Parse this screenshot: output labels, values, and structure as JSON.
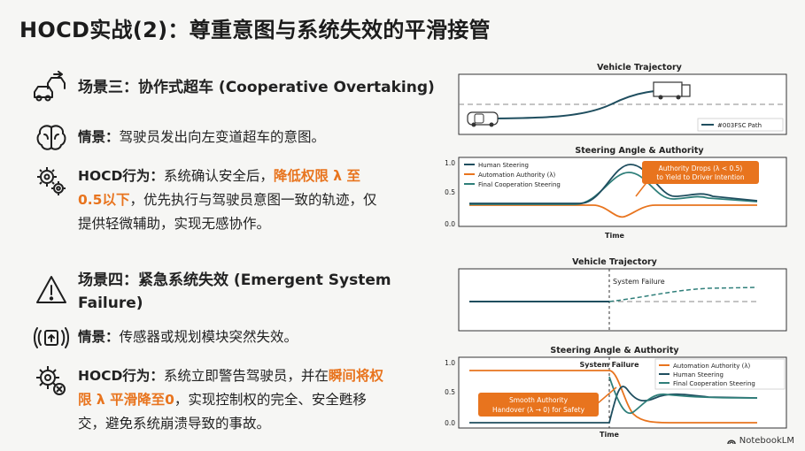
{
  "title": "HOCD实战(2)：尊重意图与系统失效的平滑接管",
  "scenario3": {
    "heading": "场景三：协作式超车 (Cooperative Overtaking)",
    "intent_label": "情景：",
    "intent_text": "驾驶员发出向左变道超车的意图。",
    "action_label": "HOCD行为：",
    "action_text_1": "系统确认安全后，",
    "action_highlight": "降低权限 λ 至 0.5以下",
    "action_text_2": "，优先执行与驾驶员意图一致的轨迹，仅提供轻微辅助，实现无感协作。"
  },
  "scenario4": {
    "heading": "场景四：紧急系统失效 (Emergent System Failure)",
    "intent_label": "情景：",
    "intent_text": "传感器或规划模块突然失效。",
    "action_label": "HOCD行为：",
    "action_text_1": "系统立即警告驾驶员，并在",
    "action_highlight": "瞬间将权限 λ 平滑降至0",
    "action_text_2": "，实现控制权的完全、安全甦移交，避免系统崩溃导致的事故。"
  },
  "chart_top_traj": {
    "title": "Vehicle Trajectory",
    "legend": "#003FSC Path"
  },
  "chart_top_steer": {
    "title": "Steering Angle & Authority",
    "xlabel": "Time",
    "yticks": [
      "1.0",
      "0.5",
      "0.0"
    ],
    "legend": [
      "Human Steering",
      "Automation Authority (λ)",
      "Final Cooperation Steering"
    ],
    "callout_1": "Authority Drops (λ < 0.5)",
    "callout_2": "to Yield to Driver Intention"
  },
  "chart_bot_traj": {
    "title": "Vehicle Trajectory",
    "annotation": "System Failure"
  },
  "chart_bot_steer": {
    "title": "Steering Angle & Authority",
    "xlabel": "Time",
    "yticks": [
      "1.0",
      "0.5",
      "0.0"
    ],
    "annotation": "System Failure",
    "legend": [
      "Automation Authority (λ)",
      "Human Steering",
      "Final Cooperation Steering"
    ],
    "callout_1": "Smooth Authority",
    "callout_2": "Handover (λ → 0) for Safety"
  },
  "colors": {
    "human": "#1f4e5f",
    "authority": "#e8741e",
    "final": "#2f7f7a",
    "dashed": "#888888"
  },
  "footer": "NotebookLM"
}
